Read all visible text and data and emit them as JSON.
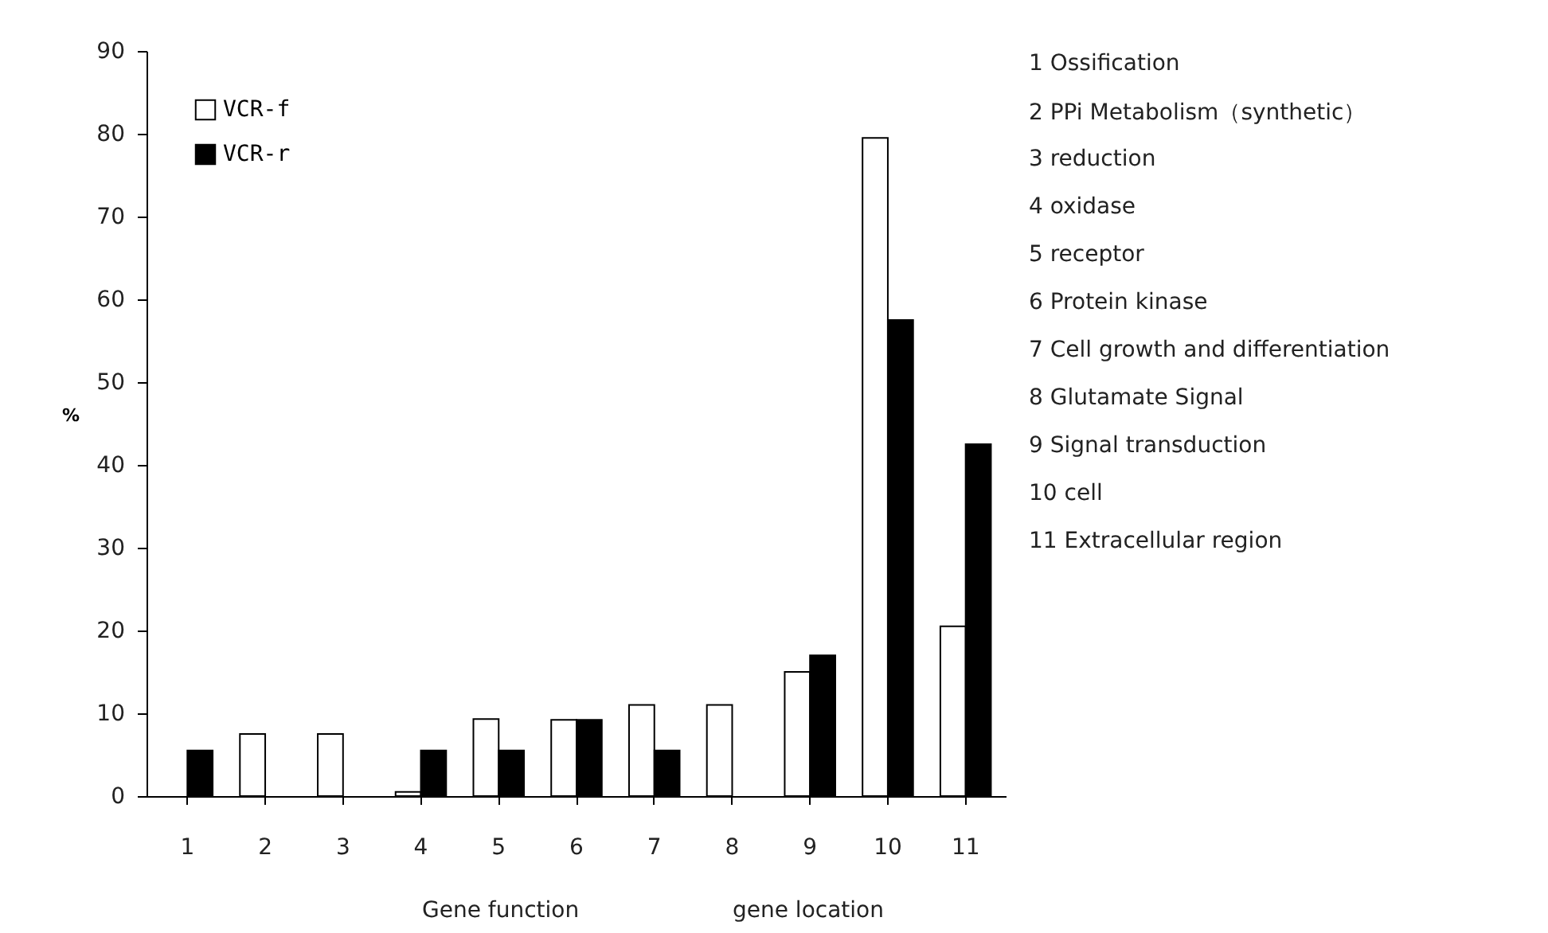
{
  "chart_data": {
    "type": "bar",
    "ylabel": "%",
    "categories": [
      "1",
      "2",
      "3",
      "4",
      "5",
      "6",
      "7",
      "8",
      "9",
      "10",
      "11"
    ],
    "series": [
      {
        "name": "VCR-f",
        "color": "#ffffff",
        "values": [
          null,
          7.5,
          7.5,
          0.5,
          9.3,
          9.2,
          11,
          11,
          15,
          79.5,
          20.5
        ]
      },
      {
        "name": "VCR-r",
        "color": "#000000",
        "values": [
          5.5,
          null,
          null,
          5.5,
          5.5,
          9.2,
          5.5,
          null,
          17,
          57.5,
          42.5
        ]
      }
    ],
    "ylim": [
      0,
      90
    ],
    "yticks": [
      0,
      10,
      20,
      30,
      40,
      50,
      60,
      70,
      80,
      90
    ],
    "grid": false,
    "legend": "top left",
    "annotations": [
      "1 Ossification",
      "2 PPi Metabolism（synthetic）",
      "3 reduction",
      "4 oxidase",
      "5 receptor",
      "6 Protein kinase",
      "7 Cell growth and differentiation",
      "8 Glutamate Signal",
      "9 Signal transduction",
      "10 cell",
      "11 Extracellular region",
      "Gene function",
      "gene location"
    ]
  }
}
